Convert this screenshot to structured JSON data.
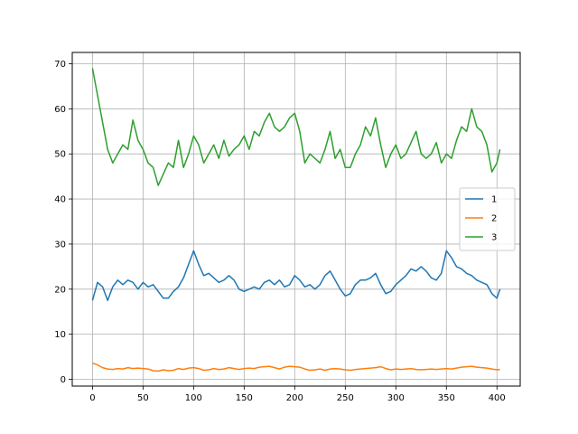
{
  "chart_data": {
    "type": "line",
    "title": "",
    "xlabel": "",
    "ylabel": "",
    "xlim": [
      -20,
      423
    ],
    "ylim": [
      -1.5,
      72.5
    ],
    "xticks": [
      0,
      50,
      100,
      150,
      200,
      250,
      300,
      350,
      400
    ],
    "yticks": [
      0,
      10,
      20,
      30,
      40,
      50,
      60,
      70
    ],
    "grid": true,
    "legend_position": "center-right",
    "x": [
      0,
      5,
      10,
      15,
      20,
      25,
      30,
      35,
      40,
      45,
      50,
      55,
      60,
      65,
      70,
      75,
      80,
      85,
      90,
      95,
      100,
      105,
      110,
      115,
      120,
      125,
      130,
      135,
      140,
      145,
      150,
      155,
      160,
      165,
      170,
      175,
      180,
      185,
      190,
      195,
      200,
      205,
      210,
      215,
      220,
      225,
      230,
      235,
      240,
      245,
      250,
      255,
      260,
      265,
      270,
      275,
      280,
      285,
      290,
      295,
      300,
      305,
      310,
      315,
      320,
      325,
      330,
      335,
      340,
      345,
      350,
      355,
      360,
      365,
      370,
      375,
      380,
      385,
      390,
      395,
      400,
      403
    ],
    "series": [
      {
        "name": "1",
        "color": "#1f77b4",
        "values": [
          17.5,
          21.5,
          20.5,
          17.5,
          20.5,
          22,
          21,
          22,
          21.5,
          20,
          21.5,
          20.5,
          21,
          19.5,
          18,
          18,
          19.5,
          20.5,
          22.5,
          25.5,
          28.5,
          25.5,
          23,
          23.5,
          22.5,
          21.5,
          22,
          23,
          22,
          20,
          19.5,
          20,
          20.5,
          20,
          21.5,
          22,
          21,
          22,
          20.5,
          21,
          23,
          22,
          20.5,
          21,
          20,
          21,
          23,
          24,
          22,
          20,
          18.5,
          19,
          21,
          22,
          22,
          22.5,
          23.5,
          21,
          19,
          19.5,
          21,
          22,
          23,
          24.5,
          24,
          25,
          24,
          22.5,
          22,
          23.5,
          28.5,
          27,
          25,
          24.5,
          23.5,
          23,
          22,
          21.5,
          21,
          19,
          18,
          20
        ]
      },
      {
        "name": "2",
        "color": "#ff7f0e",
        "values": [
          3.6,
          3.2,
          2.6,
          2.3,
          2.2,
          2.4,
          2.3,
          2.6,
          2.4,
          2.5,
          2.4,
          2.3,
          1.9,
          1.8,
          2.1,
          1.9,
          2.0,
          2.4,
          2.2,
          2.5,
          2.6,
          2.4,
          2.0,
          2.1,
          2.4,
          2.2,
          2.3,
          2.6,
          2.4,
          2.2,
          2.4,
          2.5,
          2.4,
          2.7,
          2.8,
          2.9,
          2.6,
          2.3,
          2.7,
          2.9,
          2.8,
          2.7,
          2.3,
          2.0,
          2.1,
          2.3,
          2.0,
          2.3,
          2.4,
          2.3,
          2.1,
          2.0,
          2.2,
          2.3,
          2.4,
          2.5,
          2.6,
          2.8,
          2.4,
          2.1,
          2.3,
          2.2,
          2.3,
          2.4,
          2.2,
          2.1,
          2.2,
          2.3,
          2.2,
          2.3,
          2.4,
          2.3,
          2.5,
          2.7,
          2.8,
          2.9,
          2.7,
          2.6,
          2.5,
          2.3,
          2.1,
          2.2
        ]
      },
      {
        "name": "3",
        "color": "#2ca02c",
        "values": [
          69,
          63,
          57,
          51,
          48,
          50,
          52,
          51,
          57.5,
          53,
          51,
          48,
          47,
          43,
          45.5,
          48,
          47,
          53,
          47,
          50,
          54,
          52,
          48,
          50,
          52,
          49,
          53,
          49.5,
          51,
          52,
          54,
          51,
          55,
          54,
          57,
          59,
          56,
          55,
          56,
          58,
          59,
          55,
          48,
          50,
          49,
          48,
          51,
          55,
          49,
          51,
          47,
          47,
          50,
          52,
          56,
          54,
          58,
          52,
          47,
          50,
          52,
          49,
          50,
          52.5,
          55,
          50,
          49,
          50,
          52.5,
          48,
          50,
          49,
          53,
          56,
          55,
          60,
          56,
          55,
          52,
          46,
          48,
          51
        ]
      }
    ]
  }
}
